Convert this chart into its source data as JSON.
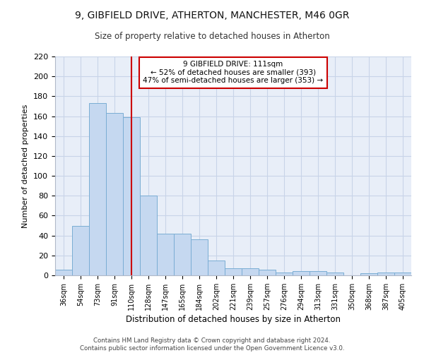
{
  "title_line1": "9, GIBFIELD DRIVE, ATHERTON, MANCHESTER, M46 0GR",
  "title_line2": "Size of property relative to detached houses in Atherton",
  "xlabel": "Distribution of detached houses by size in Atherton",
  "ylabel": "Number of detached properties",
  "categories": [
    "36sqm",
    "54sqm",
    "73sqm",
    "91sqm",
    "110sqm",
    "128sqm",
    "147sqm",
    "165sqm",
    "184sqm",
    "202sqm",
    "221sqm",
    "239sqm",
    "257sqm",
    "276sqm",
    "294sqm",
    "313sqm",
    "331sqm",
    "350sqm",
    "368sqm",
    "387sqm",
    "405sqm"
  ],
  "values": [
    6,
    50,
    173,
    163,
    159,
    80,
    42,
    42,
    36,
    15,
    7,
    7,
    6,
    3,
    4,
    4,
    3,
    0,
    2,
    3,
    3
  ],
  "bar_color": "#c5d8f0",
  "bar_edge_color": "#7aadd4",
  "vline_x": 4,
  "vline_color": "#cc0000",
  "annotation_text": "9 GIBFIELD DRIVE: 111sqm\n← 52% of detached houses are smaller (393)\n47% of semi-detached houses are larger (353) →",
  "annotation_box_color": "#ffffff",
  "annotation_box_edge": "#cc0000",
  "grid_color": "#c8d4e8",
  "background_color": "#e8eef8",
  "footer_text": "Contains HM Land Registry data © Crown copyright and database right 2024.\nContains public sector information licensed under the Open Government Licence v3.0.",
  "ylim": [
    0,
    220
  ],
  "yticks": [
    0,
    20,
    40,
    60,
    80,
    100,
    120,
    140,
    160,
    180,
    200,
    220
  ]
}
